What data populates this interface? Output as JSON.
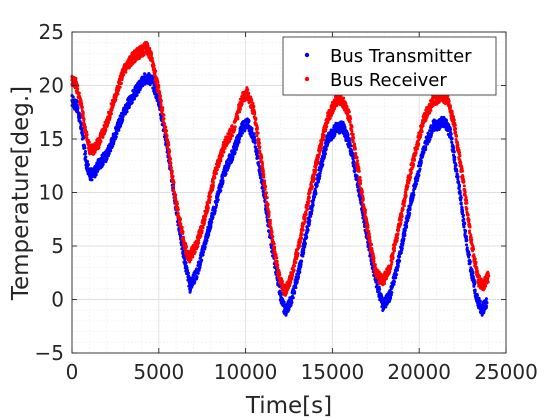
{
  "chart_data": {
    "type": "scatter",
    "title": "",
    "xlabel": "Time[s]",
    "ylabel": "Temperature[deg.]",
    "xlim": [
      0,
      25000
    ],
    "ylim": [
      -5,
      25
    ],
    "x_ticks": [
      0,
      5000,
      10000,
      15000,
      20000,
      25000
    ],
    "x_tick_labels": [
      "0",
      "5000",
      "10000",
      "15000",
      "20000",
      "25000"
    ],
    "y_ticks": [
      -5,
      0,
      5,
      10,
      15,
      20,
      25
    ],
    "y_tick_labels": [
      "−5",
      "0",
      "5",
      "10",
      "15",
      "20",
      "25"
    ],
    "grid": true,
    "minor_grid": true,
    "legend_position": "top-right",
    "series": [
      {
        "name": "Bus Transmitter",
        "color": "#0000ff",
        "x": [
          0,
          300,
          600,
          800,
          1000,
          1200,
          1500,
          2000,
          2500,
          3000,
          3500,
          4000,
          4300,
          4600,
          5000,
          5500,
          6000,
          6500,
          6800,
          7200,
          7700,
          8200,
          8800,
          9300,
          9800,
          10100,
          10500,
          11000,
          11500,
          12000,
          12300,
          12700,
          13200,
          13700,
          14200,
          14700,
          15200,
          15600,
          16000,
          16500,
          17000,
          17500,
          17900,
          18300,
          18800,
          19300,
          19800,
          20300,
          20800,
          21300,
          21500,
          21800,
          22300,
          22800,
          23300,
          23600,
          23900
        ],
        "y": [
          18.6,
          18.0,
          15.5,
          13.0,
          11.8,
          11.6,
          12.5,
          13.5,
          15.5,
          17.6,
          19.0,
          20.2,
          20.8,
          20.5,
          18.6,
          14.0,
          8.5,
          3.5,
          1.2,
          2.5,
          5.5,
          8.5,
          12.0,
          13.8,
          16.0,
          16.6,
          15.0,
          10.5,
          5.0,
          0.5,
          -1.2,
          0.3,
          3.6,
          7.8,
          11.5,
          14.8,
          16.0,
          16.1,
          14.5,
          10.5,
          5.8,
          1.8,
          -0.5,
          0.3,
          3.5,
          7.5,
          11.0,
          14.2,
          16.2,
          16.5,
          16.6,
          15.5,
          10.5,
          4.5,
          0.2,
          -1.0,
          -0.3
        ]
      },
      {
        "name": "Bus Receiver",
        "color": "#ff0000",
        "x": [
          0,
          200,
          500,
          800,
          1000,
          1200,
          1500,
          2000,
          2500,
          3000,
          3500,
          4000,
          4300,
          4600,
          5000,
          5500,
          6000,
          6500,
          6700,
          7200,
          7700,
          8200,
          8800,
          9300,
          9800,
          10100,
          10500,
          11000,
          11500,
          12000,
          12300,
          12700,
          13200,
          13700,
          14200,
          14700,
          15200,
          15600,
          16000,
          16500,
          17000,
          17500,
          17900,
          18300,
          18800,
          19300,
          19800,
          20300,
          20800,
          21300,
          21600,
          22000,
          22500,
          23000,
          23400,
          23700,
          24000
        ],
        "y": [
          20.5,
          20.3,
          18.5,
          15.5,
          14.2,
          14.0,
          14.5,
          16.5,
          19.0,
          21.5,
          22.6,
          23.2,
          23.6,
          22.5,
          19.5,
          14.8,
          9.0,
          5.0,
          3.8,
          5.2,
          8.0,
          11.5,
          14.5,
          16.0,
          18.8,
          19.3,
          17.5,
          12.0,
          6.0,
          1.6,
          0.8,
          2.5,
          6.0,
          10.0,
          13.5,
          16.8,
          18.6,
          18.5,
          17.0,
          12.0,
          6.8,
          2.5,
          1.6,
          3.0,
          6.5,
          10.5,
          14.0,
          17.0,
          18.6,
          19.0,
          18.8,
          16.5,
          11.5,
          5.5,
          1.8,
          1.3,
          2.2
        ]
      }
    ]
  },
  "colors": {
    "axis": "#262626",
    "grid": "#dfdfdf",
    "minor_grid": "#efefef"
  }
}
